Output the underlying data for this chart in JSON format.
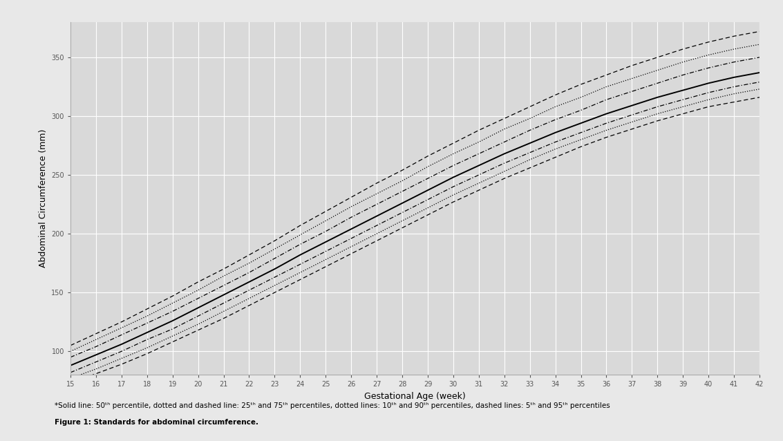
{
  "title": "",
  "xlabel": "Gestational Age (week)",
  "ylabel": "Abdominal Circumference (mm)",
  "weeks": [
    15,
    16,
    17,
    18,
    19,
    20,
    21,
    22,
    23,
    24,
    25,
    26,
    27,
    28,
    29,
    30,
    31,
    32,
    33,
    34,
    35,
    36,
    37,
    38,
    39,
    40,
    41,
    42
  ],
  "p50": [
    88,
    97,
    106,
    116,
    126,
    137,
    148,
    159,
    170,
    182,
    193,
    204,
    215,
    226,
    237,
    248,
    258,
    268,
    277,
    286,
    294,
    302,
    309,
    316,
    322,
    328,
    333,
    337
  ],
  "p25": [
    82,
    91,
    100,
    110,
    119,
    130,
    141,
    152,
    163,
    174,
    185,
    196,
    207,
    218,
    229,
    240,
    250,
    260,
    269,
    278,
    286,
    294,
    301,
    308,
    314,
    320,
    325,
    329
  ],
  "p75": [
    95,
    104,
    114,
    124,
    134,
    145,
    156,
    167,
    179,
    191,
    202,
    214,
    225,
    236,
    247,
    258,
    268,
    278,
    288,
    297,
    305,
    314,
    321,
    328,
    335,
    341,
    346,
    350
  ],
  "p10": [
    77,
    85,
    94,
    103,
    113,
    123,
    134,
    145,
    156,
    167,
    178,
    189,
    200,
    211,
    222,
    233,
    243,
    253,
    263,
    272,
    280,
    288,
    295,
    302,
    308,
    314,
    319,
    323
  ],
  "p90": [
    100,
    110,
    120,
    130,
    141,
    152,
    164,
    175,
    187,
    199,
    211,
    223,
    234,
    245,
    257,
    268,
    278,
    289,
    298,
    308,
    316,
    325,
    332,
    339,
    346,
    352,
    357,
    361
  ],
  "p5": [
    73,
    81,
    89,
    98,
    108,
    118,
    128,
    139,
    150,
    161,
    172,
    183,
    194,
    205,
    216,
    227,
    237,
    247,
    256,
    265,
    274,
    282,
    289,
    296,
    302,
    308,
    312,
    316
  ],
  "p95": [
    105,
    115,
    125,
    136,
    147,
    159,
    170,
    182,
    194,
    207,
    219,
    231,
    243,
    254,
    266,
    277,
    288,
    298,
    308,
    318,
    327,
    335,
    343,
    350,
    357,
    363,
    368,
    372
  ],
  "background_color": "#e8e8e8",
  "plot_bg_color": "#d9d9d9",
  "grid_color": "#ffffff",
  "line_color": "#000000",
  "figure_caption": "Figure 1: Standards for abdominal circumference.",
  "ylim": [
    80,
    380
  ],
  "yticks": [
    100,
    150,
    200,
    250,
    300,
    350
  ],
  "xlim": [
    15,
    42
  ],
  "xticks": [
    15,
    16,
    17,
    18,
    19,
    20,
    21,
    22,
    23,
    24,
    25,
    26,
    27,
    28,
    29,
    30,
    31,
    32,
    33,
    34,
    35,
    36,
    37,
    38,
    39,
    40,
    41,
    42
  ]
}
